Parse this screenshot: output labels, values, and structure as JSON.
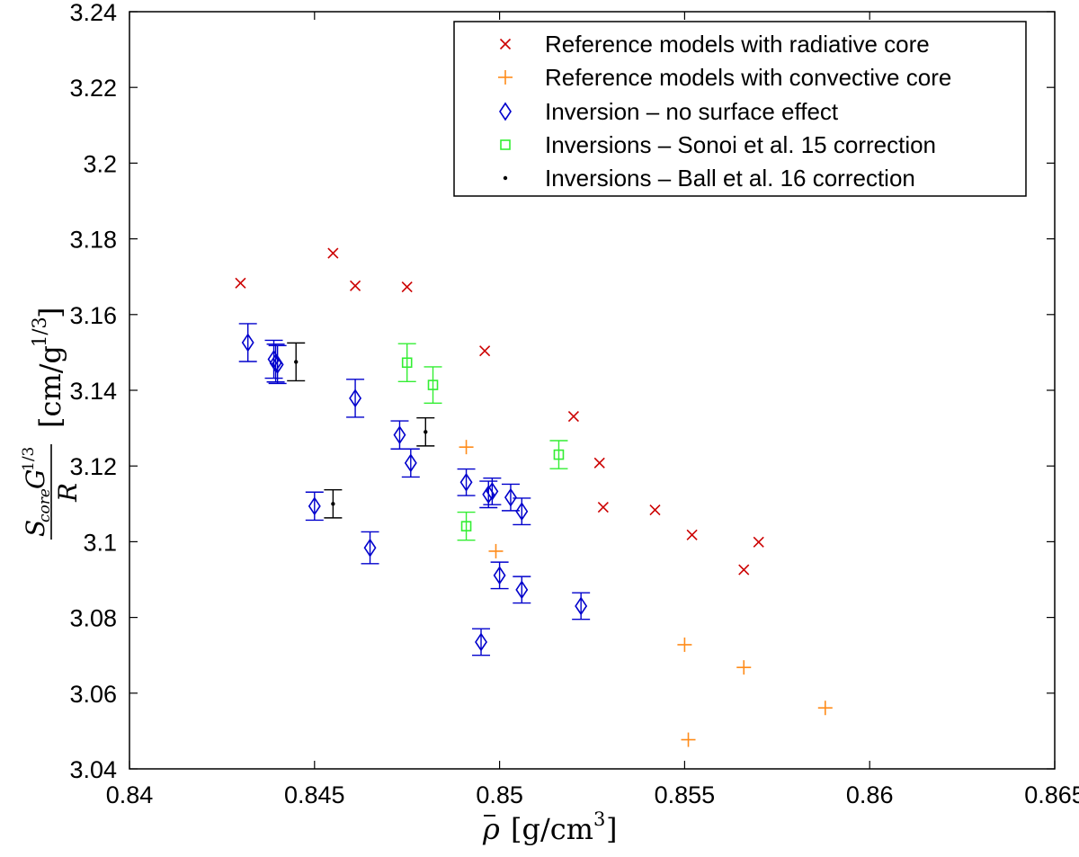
{
  "chart_data": {
    "type": "scatter",
    "xlabel": "ρ̄ [g/cm³]",
    "ylabel": "S_core G^{1/3} / R [cm/g^{1/3}]",
    "xlim": [
      0.84,
      0.865
    ],
    "ylim": [
      3.04,
      3.24
    ],
    "xticks": [
      0.84,
      0.845,
      0.85,
      0.855,
      0.86,
      0.865
    ],
    "yticks": [
      3.04,
      3.06,
      3.08,
      3.1,
      3.12,
      3.14,
      3.16,
      3.18,
      3.2,
      3.22,
      3.24
    ],
    "x_tick_labels": [
      "0.84",
      "0.845",
      "0.85",
      "0.855",
      "0.86",
      "0.865"
    ],
    "y_tick_labels": [
      "3.04",
      "3.06",
      "3.08",
      "3.1",
      "3.12",
      "3.14",
      "3.16",
      "3.18",
      "3.2",
      "3.22",
      "3.24"
    ],
    "grid": false,
    "legend_position": "top-right",
    "series": [
      {
        "name": "Reference models with radiative core",
        "marker": "x",
        "color": "#cc0000",
        "points": [
          {
            "x": 0.843,
            "y": 3.1683
          },
          {
            "x": 0.8455,
            "y": 3.1762
          },
          {
            "x": 0.8461,
            "y": 3.1676
          },
          {
            "x": 0.8475,
            "y": 3.1673
          },
          {
            "x": 0.8496,
            "y": 3.1504
          },
          {
            "x": 0.852,
            "y": 3.1331
          },
          {
            "x": 0.8527,
            "y": 3.1208
          },
          {
            "x": 0.8528,
            "y": 3.1091
          },
          {
            "x": 0.8542,
            "y": 3.1084
          },
          {
            "x": 0.8552,
            "y": 3.1018
          },
          {
            "x": 0.8566,
            "y": 3.0926
          },
          {
            "x": 0.857,
            "y": 3.0999
          }
        ]
      },
      {
        "name": "Reference models with convective core",
        "marker": "+",
        "color": "#ff8c1a",
        "points": [
          {
            "x": 0.8491,
            "y": 3.125
          },
          {
            "x": 0.8499,
            "y": 3.0975
          },
          {
            "x": 0.855,
            "y": 3.0728
          },
          {
            "x": 0.8551,
            "y": 3.0477
          },
          {
            "x": 0.8566,
            "y": 3.0668
          },
          {
            "x": 0.8588,
            "y": 3.0561
          }
        ]
      },
      {
        "name": "Inversion – no surface effect",
        "marker": "diamond",
        "color": "#0000cc",
        "points": [
          {
            "x": 0.8432,
            "y": 3.1526,
            "err": 0.005
          },
          {
            "x": 0.8439,
            "y": 3.1482,
            "err": 0.005
          },
          {
            "x": 0.84395,
            "y": 3.1472,
            "err": 0.005
          },
          {
            "x": 0.844,
            "y": 3.1468,
            "err": 0.005
          },
          {
            "x": 0.845,
            "y": 3.1094,
            "err": 0.0037
          },
          {
            "x": 0.8461,
            "y": 3.1379,
            "err": 0.005
          },
          {
            "x": 0.8465,
            "y": 3.0984,
            "err": 0.0042
          },
          {
            "x": 0.8473,
            "y": 3.1282,
            "err": 0.0037
          },
          {
            "x": 0.8476,
            "y": 3.1208,
            "err": 0.0037
          },
          {
            "x": 0.8491,
            "y": 3.1157,
            "err": 0.0035
          },
          {
            "x": 0.8495,
            "y": 3.0735,
            "err": 0.0035
          },
          {
            "x": 0.8497,
            "y": 3.1125,
            "err": 0.0035
          },
          {
            "x": 0.8498,
            "y": 3.1133,
            "err": 0.0035
          },
          {
            "x": 0.85,
            "y": 3.0911,
            "err": 0.0035
          },
          {
            "x": 0.8503,
            "y": 3.1117,
            "err": 0.0035
          },
          {
            "x": 0.8506,
            "y": 3.108,
            "err": 0.0035
          },
          {
            "x": 0.8506,
            "y": 3.0873,
            "err": 0.0035
          },
          {
            "x": 0.8522,
            "y": 3.083,
            "err": 0.0035
          }
        ]
      },
      {
        "name": "Inversions – Sonoi et al. 15 correction",
        "marker": "square",
        "color": "#33ee33",
        "points": [
          {
            "x": 0.8475,
            "y": 3.1473,
            "err": 0.005
          },
          {
            "x": 0.8482,
            "y": 3.1414,
            "err": 0.0048
          },
          {
            "x": 0.8491,
            "y": 3.1041,
            "err": 0.0037
          },
          {
            "x": 0.8516,
            "y": 3.123,
            "err": 0.0037
          }
        ]
      },
      {
        "name": "Inversions – Ball et al. 16 correction",
        "marker": "dot",
        "color": "#000000",
        "points": [
          {
            "x": 0.8445,
            "y": 3.1475,
            "err": 0.005
          },
          {
            "x": 0.8455,
            "y": 3.11,
            "err": 0.0037
          },
          {
            "x": 0.848,
            "y": 3.129,
            "err": 0.0037
          }
        ]
      }
    ]
  }
}
